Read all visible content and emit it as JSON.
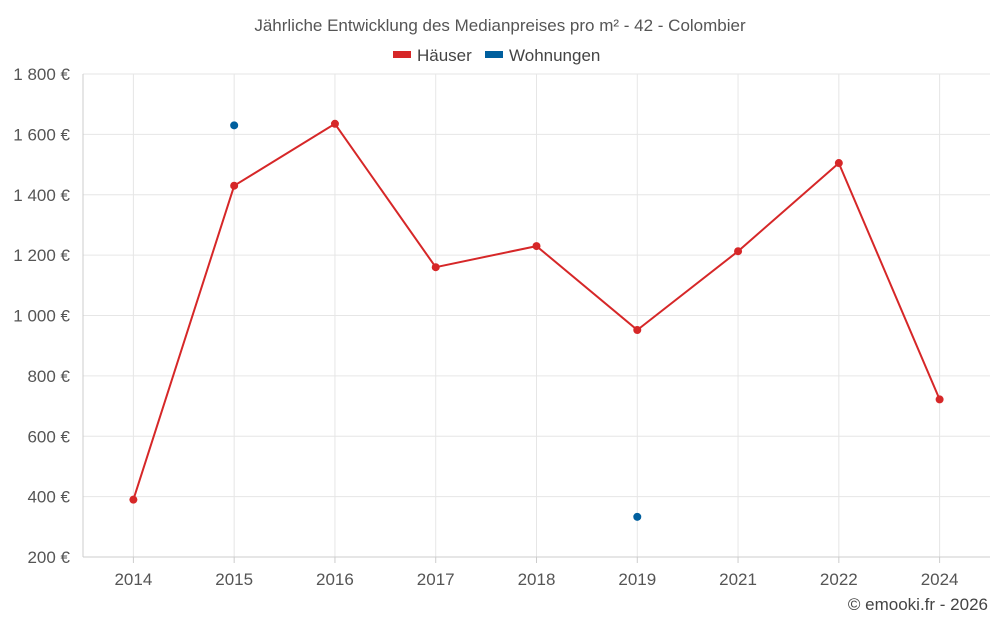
{
  "chart_data": {
    "type": "line",
    "title": "Jährliche Entwicklung des Medianpreises pro m² - 42 - Colombier",
    "categories": [
      "2014",
      "2015",
      "2016",
      "2017",
      "2018",
      "2019",
      "2021",
      "2022",
      "2024"
    ],
    "series": [
      {
        "name": "Häuser",
        "color": "#d62728",
        "style": "line",
        "values": [
          390,
          1430,
          1635,
          1160,
          1230,
          952,
          1213,
          1505,
          722
        ]
      },
      {
        "name": "Wohnungen",
        "color": "#005f9e",
        "style": "points",
        "values": [
          null,
          1630,
          null,
          null,
          null,
          333,
          null,
          null,
          null
        ]
      }
    ],
    "ylim": [
      200,
      1800
    ],
    "yticks": [
      200,
      400,
      600,
      800,
      1000,
      1200,
      1400,
      1600,
      1800
    ],
    "ytick_labels": [
      "200 €",
      "400 €",
      "600 €",
      "800 €",
      "1 000 €",
      "1 200 €",
      "1 400 €",
      "1 600 €",
      "1 800 €"
    ],
    "grid": true,
    "legend_position": "top-center",
    "xlabel": "",
    "ylabel": ""
  },
  "credit": "© emooki.fr - 2026"
}
